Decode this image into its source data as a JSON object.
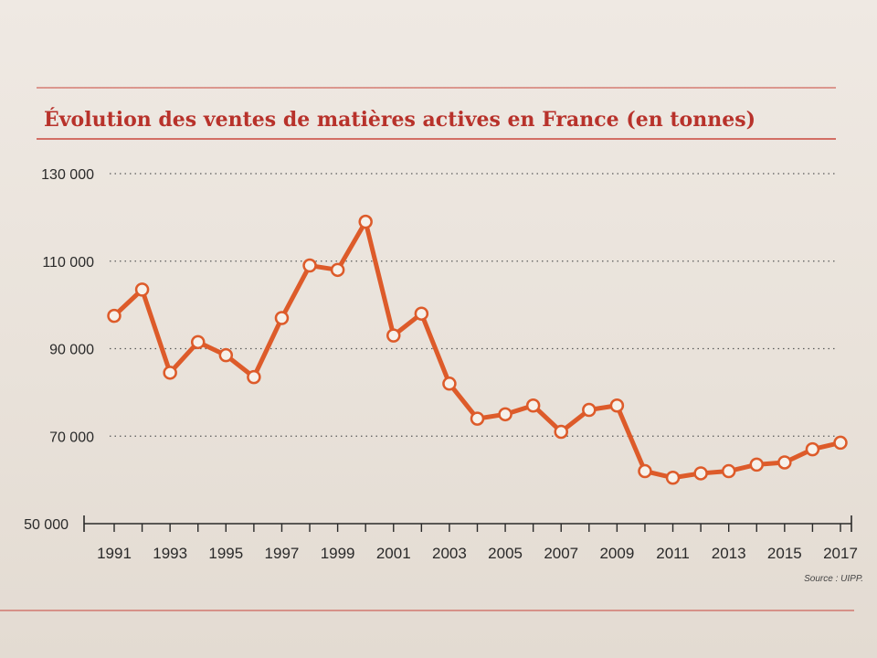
{
  "chart_data": {
    "type": "line",
    "title": "Évolution des ventes de matières actives en France (en tonnes)",
    "source": "Source : UIPP.",
    "x": [
      1991,
      1992,
      1993,
      1994,
      1995,
      1996,
      1997,
      1998,
      1999,
      2000,
      2001,
      2002,
      2003,
      2004,
      2005,
      2006,
      2007,
      2008,
      2009,
      2010,
      2011,
      2012,
      2013,
      2014,
      2015,
      2016,
      2017
    ],
    "series": [
      {
        "values": [
          97500,
          103500,
          84500,
          91500,
          88500,
          83500,
          97000,
          109000,
          108000,
          119000,
          93000,
          98000,
          82000,
          74000,
          75000,
          77000,
          71000,
          76000,
          77000,
          62000,
          60500,
          61500,
          62000,
          63500,
          64000,
          67000,
          68500
        ]
      }
    ],
    "xticks": [
      "1991",
      "1993",
      "1995",
      "1997",
      "1999",
      "2001",
      "2003",
      "2005",
      "2007",
      "2009",
      "2011",
      "2013",
      "2015",
      "2017"
    ],
    "yticks": [
      "50 000",
      "70 000",
      "90 000",
      "110 000",
      "130 000"
    ],
    "ylim": [
      50000,
      130000
    ],
    "xlim": [
      1991,
      2017
    ],
    "grid": "dotted-horizontal",
    "line_color": "#dd5b2a",
    "title_color": "#b8322b"
  }
}
